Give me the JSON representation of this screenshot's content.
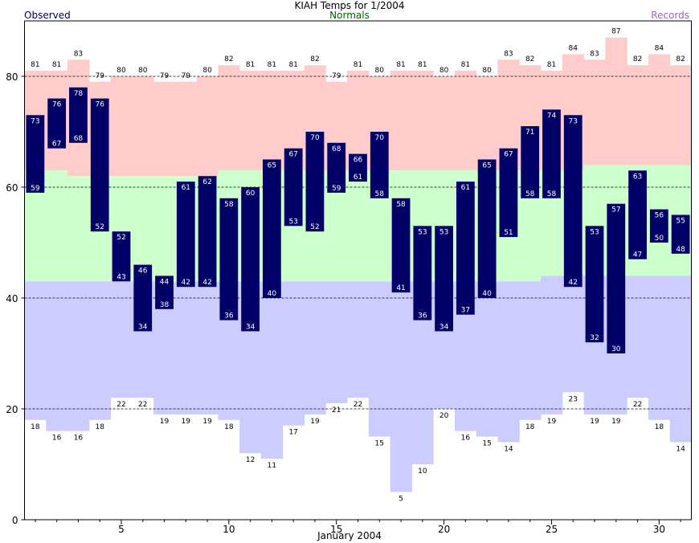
{
  "chart_data": {
    "type": "bar",
    "title": "KIAH Temps for 1/2004",
    "xlabel": "January 2004",
    "legend": {
      "observed": "Observed",
      "normals": "Normals",
      "records": "Records"
    },
    "colors": {
      "observed": "#000066",
      "normals_text": "#006600",
      "records_text": "#9966cc",
      "record_high_fill": "#ffcccc",
      "normal_fill": "#ccffcc",
      "record_low_fill": "#ccccff",
      "observed_label": "#ffffff"
    },
    "ylim": [
      0,
      90
    ],
    "yticks": [
      0,
      20,
      40,
      60,
      80
    ],
    "xticks": [
      5,
      10,
      15,
      20,
      25,
      30
    ],
    "grid_y": [
      20,
      40,
      60,
      80
    ],
    "days": [
      1,
      2,
      3,
      4,
      5,
      6,
      7,
      8,
      9,
      10,
      11,
      12,
      13,
      14,
      15,
      16,
      17,
      18,
      19,
      20,
      21,
      22,
      23,
      24,
      25,
      26,
      27,
      28,
      29,
      30,
      31
    ],
    "record_high": [
      81,
      81,
      83,
      79,
      80,
      80,
      79,
      79,
      80,
      82,
      81,
      81,
      81,
      82,
      79,
      81,
      80,
      81,
      81,
      80,
      81,
      80,
      83,
      82,
      81,
      84,
      83,
      87,
      82,
      84,
      82
    ],
    "record_low": [
      18,
      16,
      16,
      18,
      22,
      22,
      19,
      19,
      19,
      18,
      12,
      11,
      17,
      19,
      21,
      22,
      15,
      5,
      10,
      20,
      16,
      15,
      14,
      18,
      19,
      23,
      19,
      19,
      22,
      18,
      14
    ],
    "normal_high": [
      63,
      63,
      62,
      62,
      62,
      62,
      62,
      62,
      62,
      63,
      63,
      63,
      63,
      63,
      63,
      63,
      63,
      63,
      63,
      63,
      63,
      63,
      63,
      63,
      63,
      63,
      64,
      64,
      64,
      64,
      64
    ],
    "normal_low": [
      43,
      43,
      43,
      43,
      43,
      43,
      43,
      43,
      43,
      43,
      43,
      43,
      43,
      43,
      43,
      43,
      43,
      43,
      43,
      43,
      43,
      43,
      43,
      43,
      44,
      44,
      44,
      44,
      44,
      44,
      44
    ],
    "observed_high": [
      73,
      76,
      78,
      76,
      52,
      46,
      44,
      61,
      62,
      58,
      60,
      65,
      67,
      70,
      68,
      66,
      70,
      58,
      53,
      53,
      61,
      65,
      67,
      71,
      74,
      73,
      53,
      57,
      63,
      56,
      55
    ],
    "observed_low": [
      59,
      67,
      68,
      52,
      43,
      34,
      38,
      42,
      42,
      36,
      34,
      40,
      53,
      52,
      59,
      61,
      58,
      41,
      36,
      34,
      37,
      40,
      51,
      58,
      58,
      42,
      32,
      30,
      47,
      50,
      48
    ]
  }
}
